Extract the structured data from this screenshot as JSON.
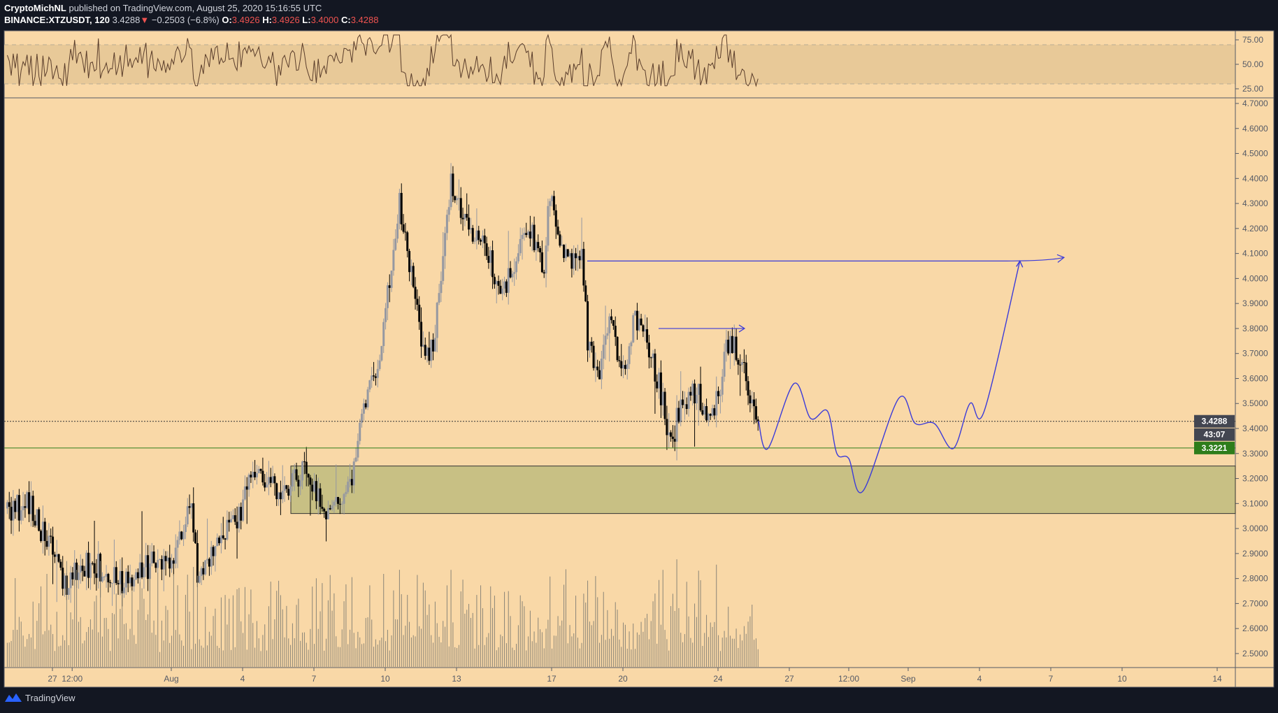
{
  "header": {
    "author": "CryptoMichNL",
    "published": "published on TradingView.com, August 25, 2020 15:16:55 UTC",
    "symbol": "BINANCE:XTZUSDT, 120",
    "last": "3.4288",
    "change": "−0.2503 (−6.8%)",
    "o_label": "O:",
    "o": "3.4926",
    "h_label": "H:",
    "h": "3.4926",
    "l_label": "L:",
    "l": "3.4000",
    "c_label": "C:",
    "c": "3.4288"
  },
  "footer": {
    "brand": "TradingView"
  },
  "colors": {
    "background": "#f9d8a7",
    "up": "#9598a1",
    "down": "#000000",
    "zone": "#c8c084",
    "projection": "#3b3bd9",
    "support": "#2e7d1b"
  },
  "chart_data": {
    "type": "candlestick",
    "interval": "120",
    "ylim": [
      2.45,
      4.72
    ],
    "y_ticks": [
      "4.7000",
      "4.6000",
      "4.5000",
      "4.4000",
      "4.3000",
      "4.2000",
      "4.1000",
      "4.0000",
      "3.9000",
      "3.8000",
      "3.7000",
      "3.6000",
      "3.5000",
      "3.4000",
      "3.3000",
      "3.2000",
      "3.1000",
      "3.0000",
      "2.9000",
      "2.8000",
      "2.7000",
      "2.6000",
      "2.5000"
    ],
    "x_ticks": [
      {
        "label": "27",
        "day": 0
      },
      {
        "label": "12:00",
        "day": 0.83
      },
      {
        "label": "Aug",
        "day": 5
      },
      {
        "label": "4",
        "day": 8
      },
      {
        "label": "7",
        "day": 11
      },
      {
        "label": "10",
        "day": 14
      },
      {
        "label": "13",
        "day": 17
      },
      {
        "label": "17",
        "day": 21
      },
      {
        "label": "20",
        "day": 24
      },
      {
        "label": "24",
        "day": 28
      },
      {
        "label": "27",
        "day": 31
      },
      {
        "label": "12:00",
        "day": 33.5
      },
      {
        "label": "Sep",
        "day": 36
      },
      {
        "label": "4",
        "day": 39
      },
      {
        "label": "7",
        "day": 42
      },
      {
        "label": "10",
        "day": 45
      },
      {
        "label": "14",
        "day": 49
      }
    ],
    "price_path_days_from_jul27": [
      [
        -1.9,
        3.08
      ],
      [
        -1,
        3.1
      ],
      [
        0,
        2.9
      ],
      [
        0.5,
        2.75
      ],
      [
        1.2,
        2.86
      ],
      [
        2,
        2.85
      ],
      [
        3,
        2.78
      ],
      [
        4,
        2.85
      ],
      [
        5,
        2.88
      ],
      [
        5.9,
        3.1
      ],
      [
        6.1,
        2.8
      ],
      [
        7,
        2.95
      ],
      [
        8,
        3.1
      ],
      [
        8.4,
        3.25
      ],
      [
        9.5,
        3.15
      ],
      [
        10.5,
        3.22
      ],
      [
        11.5,
        3.08
      ],
      [
        12.5,
        3.14
      ],
      [
        13,
        3.45
      ],
      [
        13.8,
        3.7
      ],
      [
        14.6,
        4.3
      ],
      [
        15.5,
        3.75
      ],
      [
        16,
        3.7
      ],
      [
        16.8,
        4.4
      ],
      [
        17,
        4.3
      ],
      [
        18,
        4.15
      ],
      [
        19,
        3.95
      ],
      [
        20,
        4.2
      ],
      [
        20.7,
        4.05
      ],
      [
        20.9,
        4.35
      ],
      [
        21.5,
        4.1
      ],
      [
        22.3,
        4.05
      ],
      [
        22.5,
        3.75
      ],
      [
        23,
        3.6
      ],
      [
        23.5,
        3.85
      ],
      [
        24,
        3.6
      ],
      [
        24.5,
        3.85
      ],
      [
        25,
        3.75
      ],
      [
        25.6,
        3.55
      ],
      [
        26,
        3.35
      ],
      [
        26.5,
        3.5
      ],
      [
        27,
        3.55
      ],
      [
        27.5,
        3.45
      ],
      [
        28,
        3.5
      ],
      [
        28.4,
        3.75
      ],
      [
        29,
        3.65
      ],
      [
        29.7,
        3.43
      ]
    ],
    "rsi": {
      "levels": [
        "75.00",
        "50.00",
        "25.00"
      ],
      "band": [
        30,
        70
      ]
    },
    "last_price": "3.4288",
    "countdown": "43:07",
    "support_level": "3.3221",
    "demand_zone": [
      3.06,
      3.25
    ],
    "target_level": 4.07,
    "local_target": 3.8,
    "projection_path": [
      [
        29.7,
        3.43
      ],
      [
        30.1,
        3.32
      ],
      [
        31.2,
        3.58
      ],
      [
        31.9,
        3.44
      ],
      [
        32.6,
        3.47
      ],
      [
        33,
        3.3
      ],
      [
        33.5,
        3.28
      ],
      [
        34.1,
        3.15
      ],
      [
        35.6,
        3.52
      ],
      [
        36.3,
        3.42
      ],
      [
        37.1,
        3.42
      ],
      [
        37.9,
        3.32
      ],
      [
        38.6,
        3.5
      ],
      [
        39.2,
        3.47
      ],
      [
        40.7,
        4.07
      ]
    ]
  }
}
